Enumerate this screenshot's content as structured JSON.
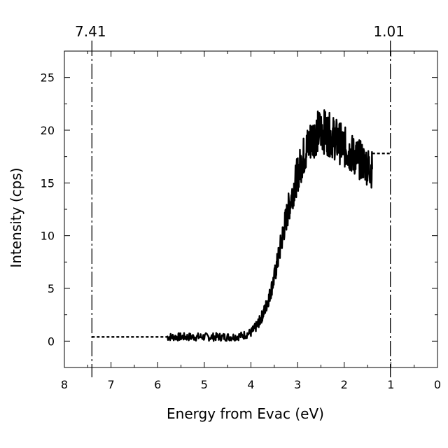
{
  "chart_data": {
    "type": "line",
    "title": "",
    "xlabel": "Energy from Evac (eV)",
    "ylabel": "Intensity (cps)",
    "xlim": [
      8,
      0
    ],
    "ylim": [
      -2.5,
      27.5
    ],
    "x_reversed": true,
    "grid": false,
    "x_ticks": [
      "8",
      "7",
      "6",
      "5",
      "4",
      "3",
      "2",
      "1",
      "0"
    ],
    "y_ticks": [
      "0",
      "5",
      "10",
      "15",
      "20",
      "25"
    ],
    "top_markers": [
      {
        "label": "7.41",
        "x": 7.41
      },
      {
        "label": "1.01",
        "x": 1.01
      }
    ],
    "series": [
      {
        "style": "solid-noisy",
        "x": [
          5.8,
          5.6,
          5.4,
          5.2,
          5.0,
          4.8,
          4.6,
          4.4,
          4.2,
          4.0,
          3.9,
          3.8,
          3.7,
          3.6,
          3.5,
          3.4,
          3.3,
          3.2,
          3.1,
          3.0,
          2.9,
          2.8,
          2.7,
          2.6,
          2.5,
          2.4,
          2.3,
          2.2,
          2.1,
          2.0,
          1.9,
          1.8,
          1.7,
          1.6,
          1.5,
          1.4
        ],
        "y": [
          0.4,
          0.4,
          0.4,
          0.4,
          0.4,
          0.4,
          0.4,
          0.4,
          0.5,
          0.8,
          1.3,
          2.0,
          3.0,
          4.3,
          6.0,
          8.2,
          10.5,
          12.5,
          14.2,
          15.8,
          17.2,
          18.3,
          19.2,
          19.7,
          20.0,
          19.8,
          19.5,
          19.2,
          18.8,
          18.4,
          18.0,
          17.6,
          17.3,
          17.0,
          16.6,
          16.3
        ]
      },
      {
        "style": "dashed-baseline",
        "x": [
          7.41,
          5.8
        ],
        "y": [
          0.4,
          0.4
        ]
      },
      {
        "style": "dashed-plateau",
        "x": [
          1.4,
          1.01
        ],
        "y": [
          17.8,
          17.8
        ]
      }
    ]
  }
}
